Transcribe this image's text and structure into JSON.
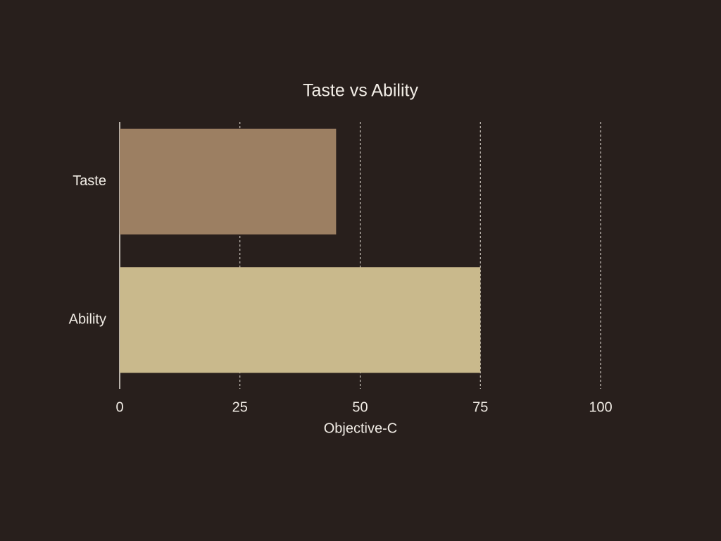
{
  "chart_data": {
    "type": "hbar",
    "title": "Taste vs Ability",
    "xlabel": "Objective-C",
    "categories": [
      "Taste",
      "Ability"
    ],
    "values": [
      45,
      75
    ],
    "colors": [
      "#9c7f62",
      "#c9b98c"
    ],
    "xlim": [
      0,
      100
    ],
    "xticks": [
      0,
      25,
      50,
      75,
      100
    ],
    "grid": true
  }
}
